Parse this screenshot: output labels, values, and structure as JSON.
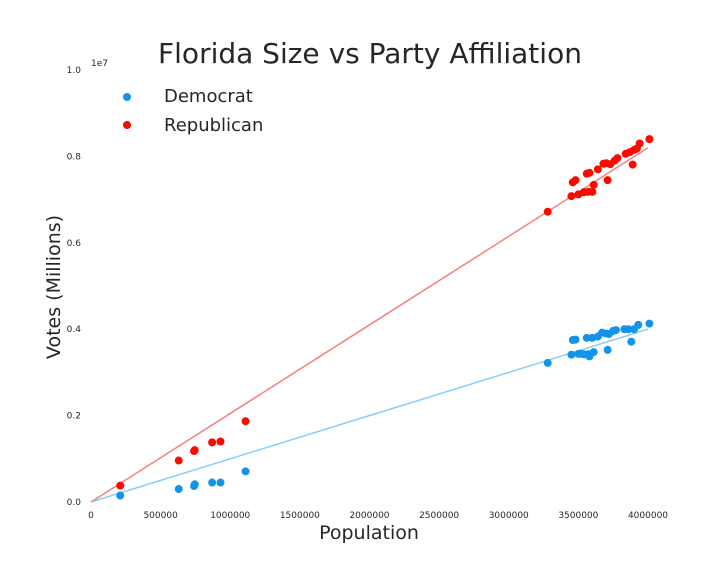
{
  "chart_data": {
    "type": "scatter",
    "title": "Florida Size vs Party Affiliation",
    "xlabel": "Population",
    "ylabel": "Votes (Millions)",
    "y_offset_text": "1e7",
    "xlim": [
      0,
      4000000
    ],
    "ylim": [
      0,
      10000000
    ],
    "x_ticks": [
      0,
      500000,
      1000000,
      1500000,
      2000000,
      2500000,
      3000000,
      3500000,
      4000000
    ],
    "x_tick_labels": [
      "0",
      "500000",
      "1000000",
      "1500000",
      "2000000",
      "2500000",
      "3000000",
      "3500000",
      "4000000"
    ],
    "y_ticks": [
      0,
      2000000,
      4000000,
      6000000,
      8000000,
      10000000
    ],
    "y_tick_labels": [
      "0.0",
      "0.2",
      "0.4",
      "0.6",
      "0.8",
      "1.0"
    ],
    "grid": false,
    "legend_position": "top-left",
    "series": [
      {
        "name": "Democrat",
        "color": "#1494e9",
        "trend_color": "#87cefa",
        "trend_slope": 1.0,
        "points": [
          [
            210000,
            150000
          ],
          [
            630000,
            300000
          ],
          [
            740000,
            370000
          ],
          [
            745000,
            410000
          ],
          [
            870000,
            450000
          ],
          [
            930000,
            450000
          ],
          [
            1110000,
            710000
          ],
          [
            3280000,
            3220000
          ],
          [
            3450000,
            3410000
          ],
          [
            3460000,
            3750000
          ],
          [
            3480000,
            3760000
          ],
          [
            3500000,
            3430000
          ],
          [
            3520000,
            3430000
          ],
          [
            3540000,
            3420000
          ],
          [
            3560000,
            3800000
          ],
          [
            3570000,
            3420000
          ],
          [
            3580000,
            3370000
          ],
          [
            3600000,
            3800000
          ],
          [
            3610000,
            3470000
          ],
          [
            3640000,
            3830000
          ],
          [
            3670000,
            3920000
          ],
          [
            3700000,
            3900000
          ],
          [
            3710000,
            3520000
          ],
          [
            3720000,
            3890000
          ],
          [
            3750000,
            3960000
          ],
          [
            3770000,
            3980000
          ],
          [
            3830000,
            4000000
          ],
          [
            3860000,
            4000000
          ],
          [
            3880000,
            3710000
          ],
          [
            3900000,
            4000000
          ],
          [
            3930000,
            4100000
          ],
          [
            4010000,
            4130000
          ]
        ]
      },
      {
        "name": "Republican",
        "color": "#fb0a00",
        "trend_color": "#f88080",
        "trend_slope": 2.05,
        "points": [
          [
            210000,
            380000
          ],
          [
            630000,
            960000
          ],
          [
            740000,
            1180000
          ],
          [
            745000,
            1200000
          ],
          [
            870000,
            1380000
          ],
          [
            930000,
            1400000
          ],
          [
            1110000,
            1870000
          ],
          [
            3280000,
            6720000
          ],
          [
            3450000,
            7080000
          ],
          [
            3460000,
            7400000
          ],
          [
            3480000,
            7450000
          ],
          [
            3500000,
            7120000
          ],
          [
            3540000,
            7170000
          ],
          [
            3560000,
            7600000
          ],
          [
            3570000,
            7180000
          ],
          [
            3580000,
            7620000
          ],
          [
            3600000,
            7180000
          ],
          [
            3610000,
            7340000
          ],
          [
            3640000,
            7700000
          ],
          [
            3680000,
            7830000
          ],
          [
            3700000,
            7840000
          ],
          [
            3710000,
            7450000
          ],
          [
            3730000,
            7820000
          ],
          [
            3760000,
            7900000
          ],
          [
            3780000,
            7960000
          ],
          [
            3840000,
            8060000
          ],
          [
            3870000,
            8100000
          ],
          [
            3890000,
            7810000
          ],
          [
            3900000,
            8150000
          ],
          [
            3920000,
            8180000
          ],
          [
            3940000,
            8300000
          ],
          [
            4010000,
            8400000
          ]
        ]
      }
    ]
  }
}
